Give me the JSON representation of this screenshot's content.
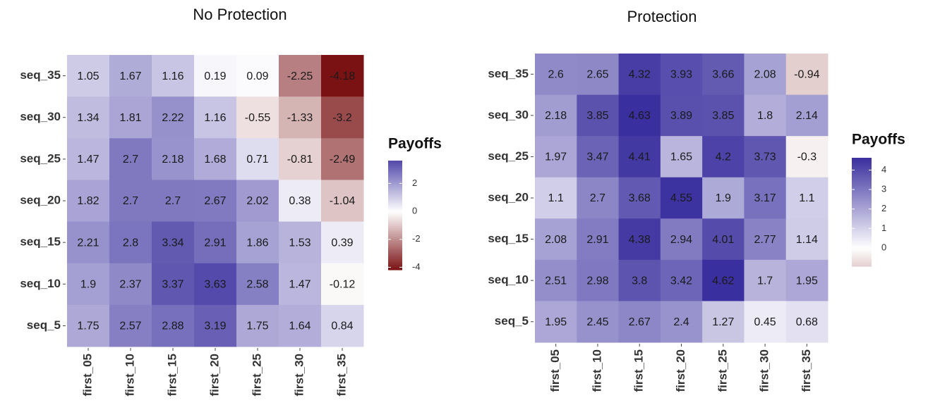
{
  "chart_data": [
    {
      "type": "heatmap",
      "title": "No Protection",
      "legend_title": "Payoffs",
      "x_categories": [
        "first_05",
        "first_10",
        "first_15",
        "first_20",
        "first_25",
        "first_30",
        "first_35"
      ],
      "y_categories": [
        "seq_35",
        "seq_30",
        "seq_25",
        "seq_20",
        "seq_15",
        "seq_10",
        "seq_5"
      ],
      "values": [
        [
          1.05,
          1.67,
          1.16,
          0.19,
          0.09,
          -2.25,
          -4.18
        ],
        [
          1.34,
          1.81,
          2.22,
          1.16,
          -0.55,
          -1.33,
          -3.2
        ],
        [
          1.47,
          2.7,
          2.18,
          1.68,
          0.71,
          -0.81,
          -2.49
        ],
        [
          1.82,
          2.7,
          2.7,
          2.67,
          2.02,
          0.38,
          -1.04
        ],
        [
          2.21,
          2.8,
          3.34,
          2.91,
          1.86,
          1.53,
          0.39
        ],
        [
          1.9,
          2.37,
          3.37,
          3.63,
          2.58,
          1.47,
          -0.12
        ],
        [
          1.75,
          2.57,
          2.88,
          3.19,
          1.75,
          1.64,
          0.84
        ]
      ],
      "clim": [
        -4.18,
        3.63
      ],
      "cticks": [
        -4,
        -2,
        0,
        2
      ],
      "colors": {
        "low": "#7a1214",
        "mid": "#ffffff",
        "high": "#3a2f9e"
      }
    },
    {
      "type": "heatmap",
      "title": "Protection",
      "legend_title": "Payoffs",
      "x_categories": [
        "first_05",
        "first_10",
        "first_15",
        "first_20",
        "first_25",
        "first_30",
        "first_35"
      ],
      "y_categories": [
        "seq_35",
        "seq_30",
        "seq_25",
        "seq_20",
        "seq_15",
        "seq_10",
        "seq_5"
      ],
      "values": [
        [
          2.6,
          2.65,
          4.32,
          3.93,
          3.66,
          2.08,
          -0.94
        ],
        [
          2.18,
          3.85,
          4.63,
          3.89,
          3.85,
          1.8,
          2.14
        ],
        [
          1.97,
          3.47,
          4.41,
          1.65,
          4.2,
          3.73,
          -0.3
        ],
        [
          1.1,
          2.7,
          3.68,
          4.55,
          1.9,
          3.17,
          1.1
        ],
        [
          2.08,
          2.91,
          4.38,
          2.94,
          4.01,
          2.77,
          1.14
        ],
        [
          2.51,
          2.98,
          3.8,
          3.42,
          4.62,
          1.7,
          1.95
        ],
        [
          1.95,
          2.45,
          2.67,
          2.4,
          1.27,
          0.45,
          0.68
        ]
      ],
      "clim": [
        -0.94,
        4.63
      ],
      "cticks": [
        0,
        1,
        2,
        3,
        4
      ],
      "colors": {
        "low": "#7a1214",
        "mid": "#ffffff",
        "high": "#3a2f9e"
      }
    }
  ]
}
